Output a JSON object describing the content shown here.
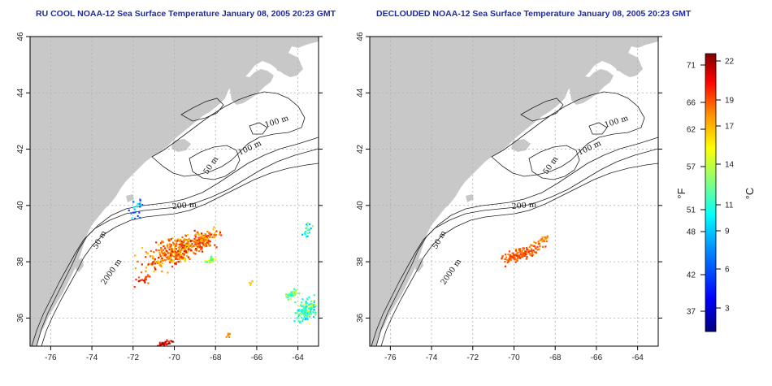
{
  "titles": {
    "left": "RU COOL NOAA-12 Sea Surface Temperature January 08, 2005 20:23 GMT",
    "right": "DECLOUDED NOAA-12 Sea Surface Temperature January 08, 2005 20:23 GMT"
  },
  "axes": {
    "lon_ticks": [
      "-76",
      "-74",
      "-72",
      "-70",
      "-68",
      "-66",
      "-64"
    ],
    "lat_ticks": [
      "36",
      "38",
      "40",
      "42",
      "44",
      "46"
    ]
  },
  "contour_labels": {
    "left": [
      "100 m",
      "100 m",
      "50 m",
      "200 m",
      "50 m",
      "2000 m"
    ],
    "right": [
      "100 m",
      "100 m",
      "50 m",
      "200 m",
      "50 m",
      "2000 m"
    ]
  },
  "colorbar": {
    "fahrenheit_ticks": [
      "71",
      "66",
      "62",
      "57",
      "51",
      "48",
      "42",
      "37"
    ],
    "celsius_ticks": [
      "22",
      "19",
      "17",
      "14",
      "11",
      "9",
      "6",
      "3"
    ],
    "unit_f": "°F",
    "unit_c": "°C",
    "colors": [
      "#000080",
      "#0000ff",
      "#0080ff",
      "#00ffff",
      "#80ff80",
      "#ffff00",
      "#ff8000",
      "#ff0000",
      "#800000"
    ]
  },
  "colors": {
    "land": "#c8c8c8",
    "title": "#1c2aa8",
    "grid": "#b0b0b0"
  }
}
